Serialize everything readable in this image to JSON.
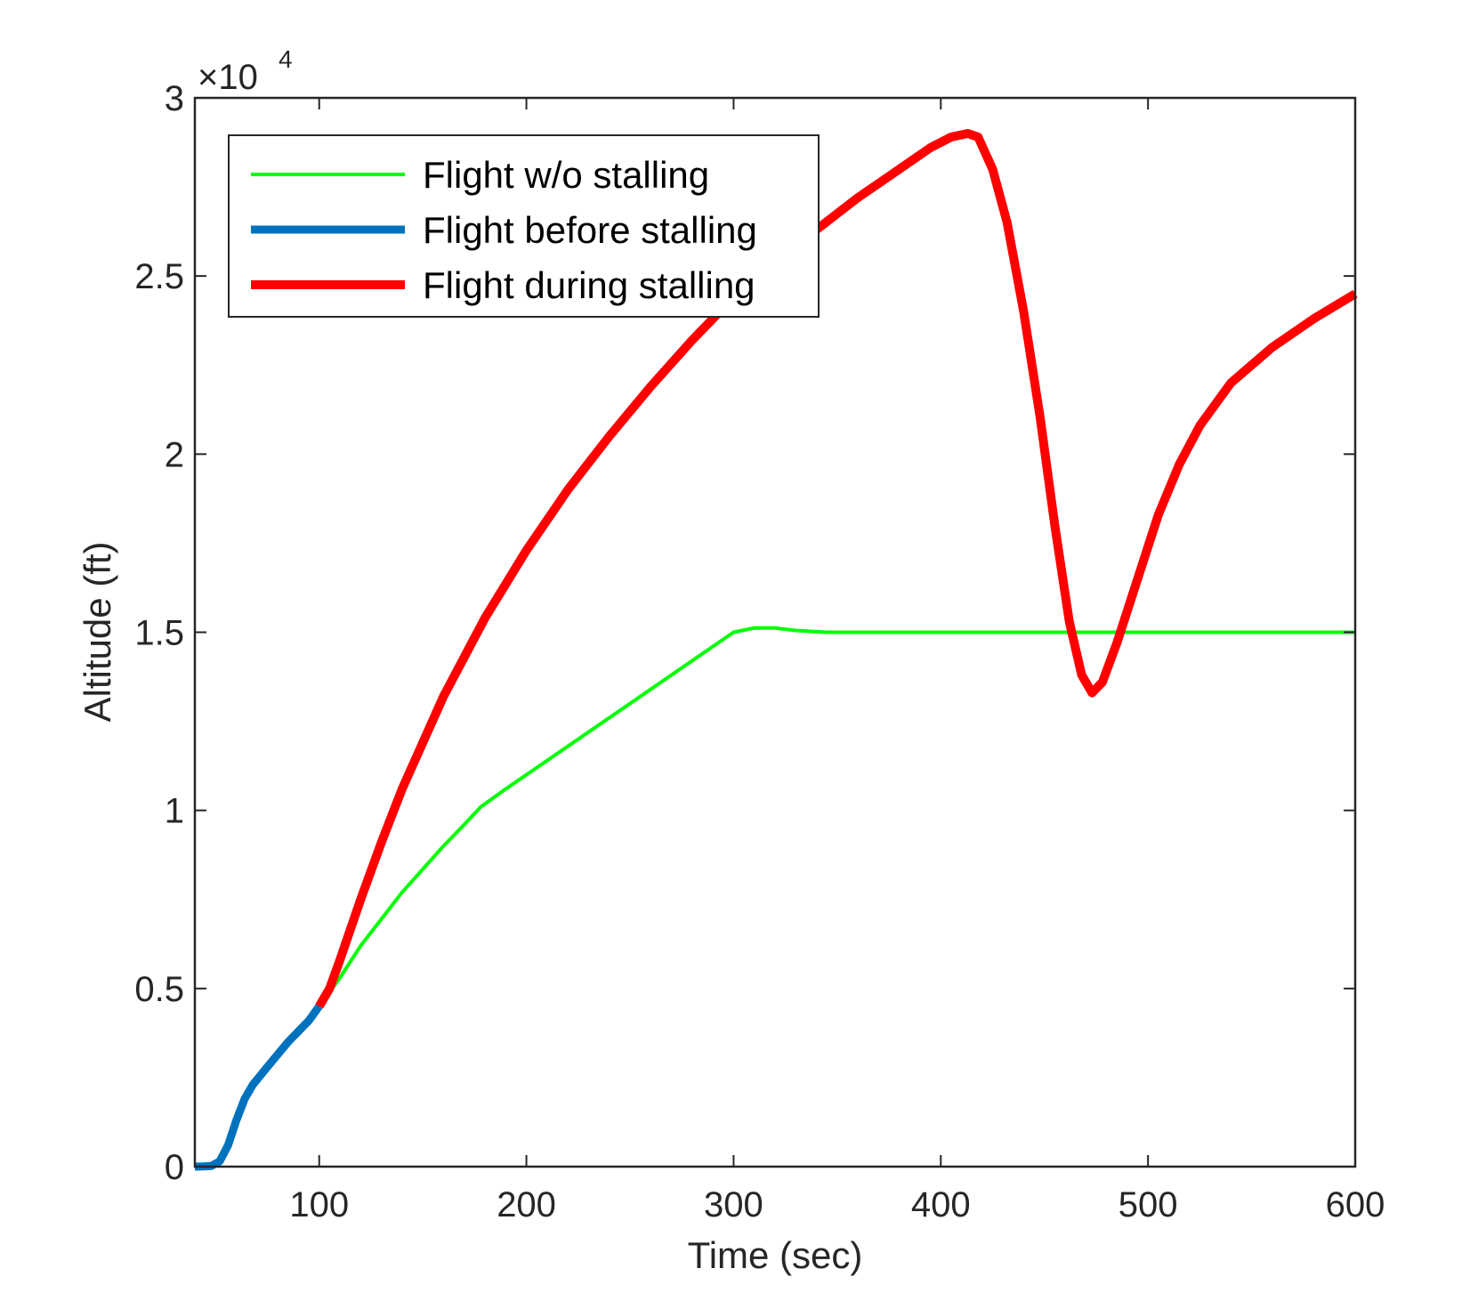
{
  "chart_data": {
    "type": "line",
    "xlabel": "Time (sec)",
    "ylabel": "Altitude (ft)",
    "xlim": [
      40,
      600
    ],
    "ylim": [
      0,
      30000
    ],
    "x_ticks": [
      100,
      200,
      300,
      400,
      500,
      600
    ],
    "y_ticks": [
      0,
      5000,
      10000,
      15000,
      20000,
      25000,
      30000
    ],
    "y_tick_labels": [
      "0",
      "0.5",
      "1",
      "1.5",
      "2",
      "2.5",
      "3"
    ],
    "y_multiplier": {
      "base": "×10",
      "exponent": "4"
    },
    "grid": false,
    "legend_position": "top-left",
    "series": [
      {
        "name": "Flight w/o stalling",
        "color": "#00ff00",
        "points": [
          [
            40,
            0
          ],
          [
            48,
            20
          ],
          [
            52,
            150
          ],
          [
            56,
            600
          ],
          [
            60,
            1300
          ],
          [
            64,
            1900
          ],
          [
            68,
            2300
          ],
          [
            75,
            2800
          ],
          [
            85,
            3500
          ],
          [
            95,
            4100
          ],
          [
            100,
            4500
          ],
          [
            110,
            5300
          ],
          [
            120,
            6200
          ],
          [
            140,
            7700
          ],
          [
            160,
            9000
          ],
          [
            170,
            9600
          ],
          [
            178,
            10100
          ],
          [
            190,
            10600
          ],
          [
            210,
            11400
          ],
          [
            230,
            12200
          ],
          [
            250,
            13000
          ],
          [
            270,
            13800
          ],
          [
            290,
            14600
          ],
          [
            300,
            15000
          ],
          [
            310,
            15120
          ],
          [
            320,
            15120
          ],
          [
            330,
            15050
          ],
          [
            345,
            15000
          ],
          [
            370,
            15000
          ],
          [
            400,
            15000
          ],
          [
            450,
            15000
          ],
          [
            500,
            15000
          ],
          [
            550,
            15000
          ],
          [
            600,
            15000
          ]
        ]
      },
      {
        "name": "Flight before stalling",
        "color": "#0072bd",
        "points": [
          [
            40,
            0
          ],
          [
            44,
            5
          ],
          [
            48,
            20
          ],
          [
            52,
            150
          ],
          [
            56,
            600
          ],
          [
            60,
            1300
          ],
          [
            64,
            1900
          ],
          [
            68,
            2300
          ],
          [
            75,
            2800
          ],
          [
            85,
            3500
          ],
          [
            95,
            4100
          ],
          [
            100,
            4500
          ]
        ]
      },
      {
        "name": "Flight during stalling",
        "color": "#ff0000",
        "points": [
          [
            100,
            4500
          ],
          [
            105,
            5000
          ],
          [
            110,
            5800
          ],
          [
            120,
            7500
          ],
          [
            130,
            9100
          ],
          [
            140,
            10600
          ],
          [
            150,
            11900
          ],
          [
            160,
            13200
          ],
          [
            170,
            14300
          ],
          [
            180,
            15400
          ],
          [
            200,
            17300
          ],
          [
            220,
            19000
          ],
          [
            240,
            20500
          ],
          [
            260,
            21900
          ],
          [
            280,
            23200
          ],
          [
            300,
            24400
          ],
          [
            320,
            25400
          ],
          [
            340,
            26300
          ],
          [
            360,
            27200
          ],
          [
            380,
            28000
          ],
          [
            395,
            28600
          ],
          [
            405,
            28900
          ],
          [
            413,
            29000
          ],
          [
            418,
            28900
          ],
          [
            425,
            28000
          ],
          [
            432,
            26500
          ],
          [
            440,
            24000
          ],
          [
            448,
            21000
          ],
          [
            455,
            18000
          ],
          [
            462,
            15300
          ],
          [
            468,
            13800
          ],
          [
            473,
            13300
          ],
          [
            478,
            13600
          ],
          [
            485,
            14700
          ],
          [
            495,
            16500
          ],
          [
            505,
            18300
          ],
          [
            515,
            19700
          ],
          [
            525,
            20800
          ],
          [
            540,
            22000
          ],
          [
            560,
            23000
          ],
          [
            580,
            23800
          ],
          [
            600,
            24500
          ]
        ]
      }
    ]
  }
}
